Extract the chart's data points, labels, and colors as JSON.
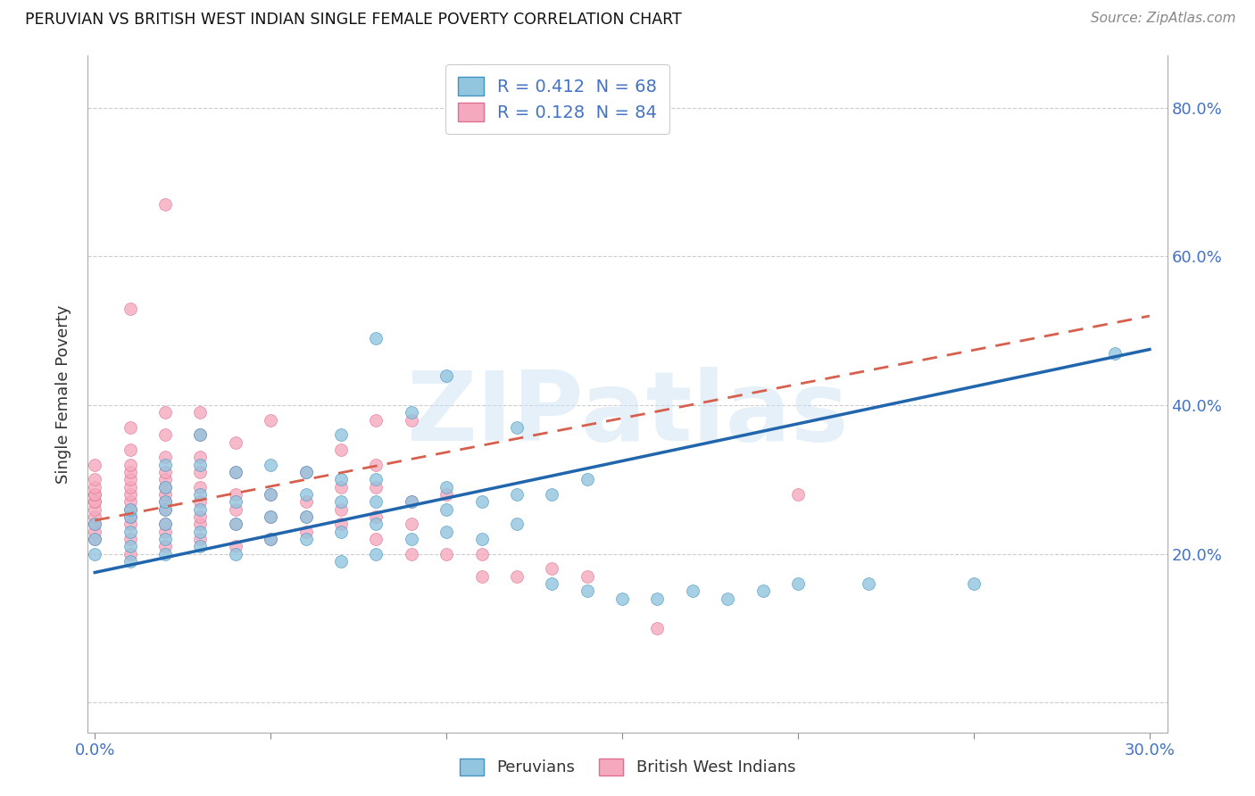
{
  "title": "PERUVIAN VS BRITISH WEST INDIAN SINGLE FEMALE POVERTY CORRELATION CHART",
  "source": "Source: ZipAtlas.com",
  "ylabel": "Single Female Poverty",
  "y_ticks": [
    0.0,
    0.2,
    0.4,
    0.6,
    0.8
  ],
  "y_tick_labels": [
    "",
    "20.0%",
    "40.0%",
    "60.0%",
    "80.0%"
  ],
  "x_lim": [
    -0.002,
    0.305
  ],
  "y_lim": [
    -0.04,
    0.87
  ],
  "blue_R": 0.412,
  "blue_N": 68,
  "pink_R": 0.128,
  "pink_N": 84,
  "blue_color": "#92c5de",
  "pink_color": "#f4a9bf",
  "blue_edge_color": "#4393c3",
  "pink_edge_color": "#e07090",
  "blue_line_color": "#2166ac",
  "pink_line_color": "#d6604d",
  "legend_label_blue": "Peruvians",
  "legend_label_pink": "British West Indians",
  "watermark": "ZIPatlas",
  "blue_line_x0": 0.0,
  "blue_line_x1": 0.3,
  "blue_line_y0": 0.175,
  "blue_line_y1": 0.475,
  "pink_line_x0": 0.0,
  "pink_line_x1": 0.3,
  "pink_line_y0": 0.245,
  "pink_line_y1": 0.52,
  "blue_scatter_x": [
    0.0,
    0.0,
    0.0,
    0.01,
    0.01,
    0.01,
    0.01,
    0.01,
    0.02,
    0.02,
    0.02,
    0.02,
    0.02,
    0.02,
    0.02,
    0.03,
    0.03,
    0.03,
    0.03,
    0.03,
    0.03,
    0.04,
    0.04,
    0.04,
    0.04,
    0.05,
    0.05,
    0.05,
    0.05,
    0.06,
    0.06,
    0.06,
    0.06,
    0.07,
    0.07,
    0.07,
    0.07,
    0.07,
    0.08,
    0.08,
    0.08,
    0.08,
    0.08,
    0.09,
    0.09,
    0.09,
    0.1,
    0.1,
    0.1,
    0.1,
    0.11,
    0.11,
    0.12,
    0.12,
    0.12,
    0.13,
    0.13,
    0.14,
    0.14,
    0.15,
    0.16,
    0.17,
    0.18,
    0.19,
    0.2,
    0.22,
    0.25,
    0.29
  ],
  "blue_scatter_y": [
    0.2,
    0.22,
    0.24,
    0.19,
    0.21,
    0.23,
    0.25,
    0.26,
    0.2,
    0.22,
    0.24,
    0.26,
    0.27,
    0.29,
    0.32,
    0.21,
    0.23,
    0.26,
    0.28,
    0.32,
    0.36,
    0.2,
    0.24,
    0.27,
    0.31,
    0.22,
    0.25,
    0.28,
    0.32,
    0.22,
    0.25,
    0.28,
    0.31,
    0.19,
    0.23,
    0.27,
    0.3,
    0.36,
    0.2,
    0.24,
    0.27,
    0.3,
    0.49,
    0.22,
    0.27,
    0.39,
    0.23,
    0.26,
    0.29,
    0.44,
    0.22,
    0.27,
    0.24,
    0.28,
    0.37,
    0.16,
    0.28,
    0.15,
    0.3,
    0.14,
    0.14,
    0.15,
    0.14,
    0.15,
    0.16,
    0.16,
    0.16,
    0.47
  ],
  "pink_scatter_x": [
    0.0,
    0.0,
    0.0,
    0.0,
    0.0,
    0.0,
    0.0,
    0.0,
    0.0,
    0.0,
    0.0,
    0.0,
    0.01,
    0.01,
    0.01,
    0.01,
    0.01,
    0.01,
    0.01,
    0.01,
    0.01,
    0.01,
    0.01,
    0.01,
    0.01,
    0.01,
    0.02,
    0.02,
    0.02,
    0.02,
    0.02,
    0.02,
    0.02,
    0.02,
    0.02,
    0.02,
    0.02,
    0.02,
    0.02,
    0.03,
    0.03,
    0.03,
    0.03,
    0.03,
    0.03,
    0.03,
    0.03,
    0.03,
    0.04,
    0.04,
    0.04,
    0.04,
    0.04,
    0.04,
    0.05,
    0.05,
    0.05,
    0.05,
    0.06,
    0.06,
    0.06,
    0.06,
    0.07,
    0.07,
    0.07,
    0.07,
    0.08,
    0.08,
    0.08,
    0.08,
    0.08,
    0.09,
    0.09,
    0.09,
    0.09,
    0.1,
    0.1,
    0.11,
    0.11,
    0.12,
    0.13,
    0.14,
    0.16,
    0.2
  ],
  "pink_scatter_y": [
    0.22,
    0.23,
    0.24,
    0.25,
    0.26,
    0.27,
    0.27,
    0.28,
    0.28,
    0.29,
    0.3,
    0.32,
    0.2,
    0.22,
    0.24,
    0.25,
    0.26,
    0.27,
    0.28,
    0.29,
    0.3,
    0.31,
    0.32,
    0.34,
    0.37,
    0.53,
    0.21,
    0.23,
    0.24,
    0.26,
    0.27,
    0.28,
    0.29,
    0.3,
    0.31,
    0.33,
    0.36,
    0.39,
    0.67,
    0.22,
    0.24,
    0.25,
    0.27,
    0.29,
    0.31,
    0.33,
    0.36,
    0.39,
    0.21,
    0.24,
    0.26,
    0.28,
    0.31,
    0.35,
    0.22,
    0.25,
    0.28,
    0.38,
    0.23,
    0.25,
    0.27,
    0.31,
    0.24,
    0.26,
    0.29,
    0.34,
    0.22,
    0.25,
    0.29,
    0.32,
    0.38,
    0.2,
    0.24,
    0.27,
    0.38,
    0.2,
    0.28,
    0.17,
    0.2,
    0.17,
    0.18,
    0.17,
    0.1,
    0.28
  ]
}
